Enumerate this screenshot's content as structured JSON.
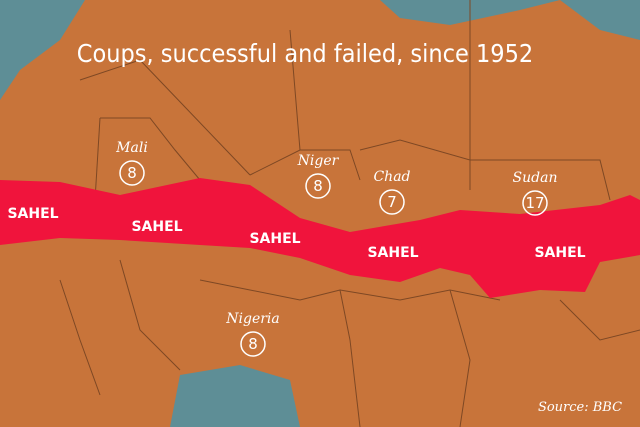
{
  "title": "Coups, successful and failed, since 1952",
  "countries": [
    {
      "name": "Mali",
      "coups": "8"
    },
    {
      "name": "Niger",
      "coups": "8"
    },
    {
      "name": "Chad",
      "coups": "7"
    },
    {
      "name": "Sudan",
      "coups": "17"
    },
    {
      "name": "Nigeria",
      "coups": "8"
    }
  ],
  "sahel_labels": [
    "SAHEL",
    "SAHEL",
    "SAHEL",
    "SAHEL",
    "SAHEL"
  ],
  "source": "Source: BBC"
}
